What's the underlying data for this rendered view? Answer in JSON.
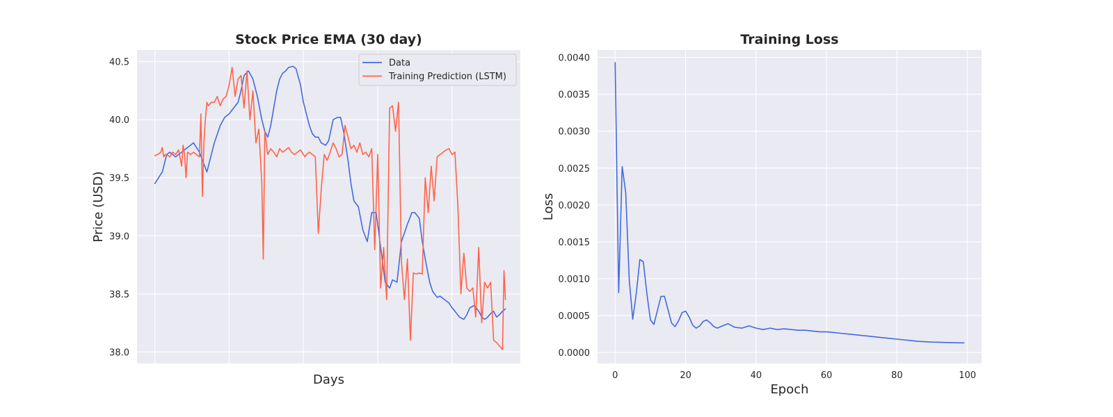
{
  "chart_data": [
    {
      "type": "line",
      "title": "Stock Price EMA (30 day)",
      "xlabel": "Days",
      "ylabel": "Price (USD)",
      "ylim": [
        37.9,
        40.6
      ],
      "yticks": [
        38.0,
        38.5,
        39.0,
        39.5,
        40.0,
        40.5
      ],
      "ytick_labels": [
        "38.0",
        "38.5",
        "39.0",
        "39.5",
        "40.0",
        "40.5"
      ],
      "xlim": [
        -12,
        246
      ],
      "x_gridlines": [
        0,
        50,
        100,
        150,
        200
      ],
      "x_ticks_labeled": false,
      "grid": true,
      "legend_position": "top-right",
      "series": [
        {
          "name": "Data",
          "color": "#4169e1",
          "x": [
            0,
            5,
            8,
            10,
            14,
            18,
            22,
            26,
            30,
            35,
            40,
            44,
            47,
            50,
            53,
            56,
            58,
            60,
            63,
            66,
            69,
            72,
            74,
            76,
            78,
            80,
            82,
            84,
            86,
            88,
            90,
            93,
            95,
            98,
            100,
            102,
            104,
            106,
            108,
            110,
            112,
            115,
            117,
            120,
            123,
            125,
            127,
            130,
            132,
            134,
            137,
            140,
            143,
            146,
            149,
            152,
            155,
            158,
            160,
            163,
            166,
            170,
            173,
            175,
            178,
            180,
            182,
            185,
            187,
            190,
            192,
            195,
            198,
            200,
            202,
            205,
            208,
            210,
            212,
            215,
            218,
            220,
            222,
            224,
            226,
            228,
            230,
            232,
            234,
            236
          ],
          "values": [
            39.45,
            39.55,
            39.7,
            39.72,
            39.68,
            39.72,
            39.76,
            39.8,
            39.72,
            39.55,
            39.8,
            39.95,
            40.02,
            40.05,
            40.1,
            40.15,
            40.25,
            40.38,
            40.42,
            40.35,
            40.2,
            40.0,
            39.9,
            39.85,
            39.95,
            40.1,
            40.25,
            40.35,
            40.4,
            40.42,
            40.45,
            40.46,
            40.44,
            40.3,
            40.15,
            40.05,
            39.95,
            39.88,
            39.85,
            39.85,
            39.8,
            39.78,
            39.82,
            40.0,
            40.02,
            40.02,
            39.9,
            39.65,
            39.45,
            39.3,
            39.25,
            39.05,
            38.95,
            39.2,
            39.2,
            38.9,
            38.6,
            38.55,
            38.62,
            38.6,
            38.95,
            39.1,
            39.2,
            39.2,
            39.15,
            38.95,
            38.8,
            38.6,
            38.52,
            38.47,
            38.48,
            38.45,
            38.42,
            38.38,
            38.35,
            38.3,
            38.28,
            38.32,
            38.38,
            38.4,
            38.35,
            38.3,
            38.28,
            38.3,
            38.33,
            38.35,
            38.3,
            38.32,
            38.35,
            38.37
          ]
        },
        {
          "name": "Training Prediction (LSTM)",
          "color": "#ff6347",
          "x": [
            0,
            2,
            4,
            5,
            6,
            7,
            8,
            10,
            12,
            14,
            16,
            18,
            19,
            20,
            21,
            22,
            24,
            26,
            28,
            30,
            31,
            32,
            33,
            34,
            35,
            36,
            38,
            40,
            42,
            44,
            46,
            48,
            50,
            52,
            54,
            56,
            58,
            60,
            62,
            64,
            66,
            68,
            70,
            72,
            73,
            74,
            75,
            76,
            78,
            80,
            82,
            84,
            86,
            88,
            90,
            92,
            94,
            96,
            98,
            100,
            101,
            102,
            104,
            106,
            108,
            110,
            112,
            114,
            116,
            118,
            120,
            122,
            124,
            126,
            128,
            130,
            132,
            134,
            136,
            138,
            140,
            142,
            144,
            146,
            148,
            150,
            152,
            154,
            156,
            158,
            160,
            162,
            164,
            166,
            168,
            170,
            172,
            174,
            176,
            178,
            180,
            182,
            184,
            186,
            188,
            190,
            192,
            194,
            196,
            198,
            200,
            202,
            204,
            206,
            208,
            210,
            212,
            214,
            216,
            218,
            220,
            222,
            224,
            226,
            228,
            230,
            232,
            234,
            235,
            236
          ],
          "values": [
            39.69,
            39.7,
            39.72,
            39.76,
            39.68,
            39.7,
            39.7,
            39.68,
            39.72,
            39.7,
            39.74,
            39.6,
            39.78,
            39.7,
            39.5,
            39.72,
            39.7,
            39.72,
            39.7,
            39.68,
            40.05,
            39.34,
            39.8,
            40.0,
            40.15,
            40.12,
            40.15,
            40.15,
            40.2,
            40.12,
            40.18,
            40.2,
            40.3,
            40.45,
            40.2,
            40.35,
            40.38,
            40.1,
            40.42,
            40.0,
            40.25,
            39.8,
            39.92,
            39.45,
            38.8,
            39.9,
            39.8,
            39.7,
            39.75,
            39.72,
            39.68,
            39.75,
            39.72,
            39.74,
            39.76,
            39.72,
            39.7,
            39.72,
            39.74,
            39.7,
            39.68,
            39.7,
            39.72,
            39.7,
            39.68,
            39.02,
            39.4,
            39.7,
            39.65,
            39.72,
            39.8,
            39.75,
            39.68,
            39.7,
            39.95,
            39.85,
            39.75,
            39.78,
            39.72,
            39.8,
            39.7,
            39.72,
            39.68,
            39.75,
            38.88,
            39.7,
            38.55,
            38.9,
            38.45,
            40.1,
            40.12,
            39.9,
            40.15,
            38.78,
            38.45,
            38.8,
            38.1,
            38.68,
            38.67,
            38.68,
            38.67,
            39.5,
            39.2,
            39.6,
            39.3,
            39.68,
            39.7,
            39.72,
            39.74,
            39.75,
            39.7,
            39.72,
            39.25,
            38.5,
            38.85,
            38.55,
            38.52,
            38.55,
            38.3,
            38.9,
            38.25,
            38.6,
            38.55,
            38.6,
            38.1,
            38.08,
            38.05,
            38.02,
            38.7,
            38.45
          ]
        }
      ]
    },
    {
      "type": "line",
      "title": "Training Loss",
      "xlabel": "Epoch",
      "ylabel": "Loss",
      "ylim": [
        -0.00015,
        0.0041
      ],
      "yticks": [
        0.0,
        0.0005,
        0.001,
        0.0015,
        0.002,
        0.0025,
        0.003,
        0.0035,
        0.004
      ],
      "ytick_labels": [
        "0.0000",
        "0.0005",
        "0.0010",
        "0.0015",
        "0.0020",
        "0.0025",
        "0.0030",
        "0.0035",
        "0.0040"
      ],
      "xlim": [
        -5,
        104
      ],
      "xticks": [
        0,
        20,
        40,
        60,
        80,
        100
      ],
      "xtick_labels": [
        "0",
        "20",
        "40",
        "60",
        "80",
        "100"
      ],
      "grid": true,
      "series": [
        {
          "color": "#4169e1",
          "x": [
            0,
            1,
            2,
            3,
            4,
            5,
            6,
            7,
            8,
            9,
            10,
            11,
            12,
            13,
            14,
            15,
            16,
            17,
            18,
            19,
            20,
            21,
            22,
            23,
            24,
            25,
            26,
            27,
            28,
            29,
            30,
            32,
            34,
            36,
            38,
            40,
            42,
            44,
            46,
            48,
            50,
            52,
            54,
            56,
            58,
            60,
            62,
            64,
            66,
            68,
            70,
            72,
            74,
            76,
            78,
            80,
            82,
            84,
            86,
            88,
            90,
            92,
            94,
            96,
            98,
            99
          ],
          "values": [
            0.00393,
            0.00081,
            0.00252,
            0.00217,
            0.00098,
            0.00045,
            0.0008,
            0.00126,
            0.00123,
            0.0008,
            0.00044,
            0.00038,
            0.00057,
            0.00076,
            0.00076,
            0.00058,
            0.0004,
            0.00035,
            0.00043,
            0.00054,
            0.00056,
            0.00048,
            0.00037,
            0.00033,
            0.00036,
            0.00042,
            0.00044,
            0.0004,
            0.00035,
            0.00033,
            0.00035,
            0.00039,
            0.00034,
            0.00033,
            0.00036,
            0.00033,
            0.00031,
            0.00033,
            0.00031,
            0.00032,
            0.00031,
            0.0003,
            0.0003,
            0.00029,
            0.00028,
            0.00028,
            0.00027,
            0.00026,
            0.00025,
            0.00024,
            0.00023,
            0.00022,
            0.00021,
            0.0002,
            0.00019,
            0.00018,
            0.00017,
            0.00016,
            0.00015,
            0.000145,
            0.00014,
            0.000138,
            0.000135,
            0.000132,
            0.00013,
            0.00013
          ]
        }
      ]
    }
  ]
}
